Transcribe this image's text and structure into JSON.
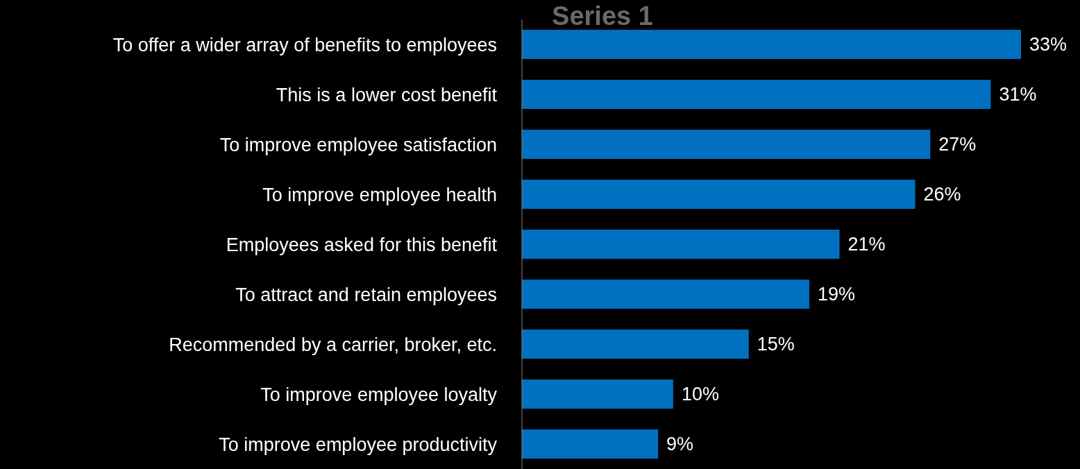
{
  "chart_data": {
    "type": "bar",
    "orientation": "horizontal",
    "title": "Series 1",
    "categories": [
      "To offer a wider array of benefits to employees",
      "This is a lower cost benefit",
      "To improve employee satisfaction",
      "To improve employee health",
      "Employees asked for this benefit",
      "To attract and retain employees",
      "Recommended by a carrier, broker, etc.",
      "To improve employee loyalty",
      "To improve employee productivity"
    ],
    "values": [
      33,
      31,
      27,
      26,
      21,
      19,
      15,
      10,
      9
    ],
    "value_labels": [
      "33%",
      "31%",
      "27%",
      "26%",
      "21%",
      "19%",
      "15%",
      "10%",
      "9%"
    ],
    "color": "#0070c0",
    "grid": false,
    "legend": false
  }
}
